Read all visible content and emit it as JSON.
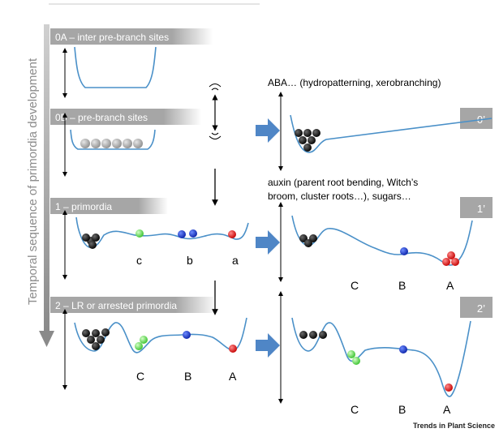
{
  "side_axis_label": "Temporal sequence of primordia development",
  "stages": {
    "s0a": "0A – inter pre-branch sites",
    "s0b": "0B – pre-branch sites",
    "s1": "1 – primordia",
    "s2": "2 – LR or arrested primordia"
  },
  "primes": {
    "p0": "0’",
    "p1": "1’",
    "p2": "2’"
  },
  "notes": {
    "aba": "ABA… (hydropatterning, xerobranching)",
    "auxin_line1": "auxin (parent root bending, Witch’s",
    "auxin_line2": "broom, cluster roots…), sugars…"
  },
  "labels": {
    "s1_c": "c",
    "s1_b": "b",
    "s1_a": "a",
    "s2_C": "C",
    "s2_B": "B",
    "s2_A": "A",
    "p1_C": "C",
    "p1_B": "B",
    "p1_A": "A",
    "p2_C": "C",
    "p2_B": "B",
    "p2_A": "A"
  },
  "credit": "Trends in Plant Science",
  "colors": {
    "banner": "#a6a6a6",
    "curve": "#4a90c8",
    "arrow_fill": "#4f86c6",
    "ball_black": "#111111",
    "ball_green": "#7ee36a",
    "ball_blue": "#1d3fcf",
    "ball_red": "#e02020",
    "ball_grey": "#b9b9b9"
  }
}
